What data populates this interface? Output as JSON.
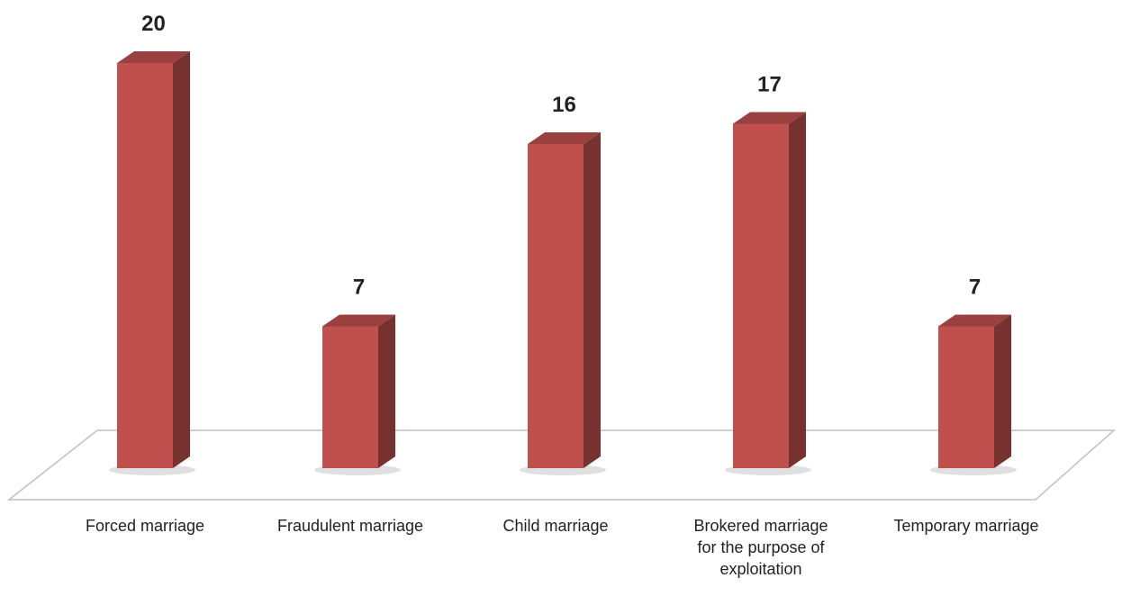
{
  "chart_data": {
    "type": "bar3d",
    "categories": [
      "Forced marriage",
      "Fraudulent marriage",
      "Child marriage",
      "Brokered marriage for the purpose of exploitation",
      "Temporary marriage"
    ],
    "values": [
      20,
      7,
      16,
      17,
      7
    ],
    "color": "#c0504d"
  }
}
